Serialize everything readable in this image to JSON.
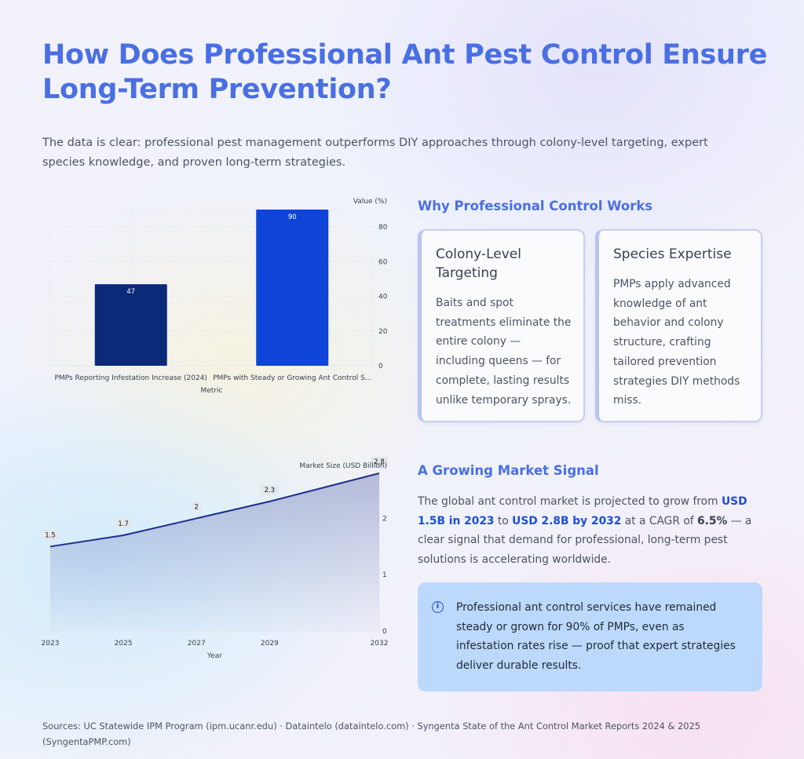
{
  "header": {
    "title": "How Does Professional Ant Pest Control Ensure Long-Term Prevention?",
    "subtitle": "The data is clear: professional pest management outperforms DIY approaches through colony-level targeting, expert species knowledge, and proven long-term strategies."
  },
  "chart_data": [
    {
      "type": "bar",
      "categories": [
        "PMPs Reporting Infestation Increase (2024)",
        "PMPs with Steady or Growing Ant Control S..."
      ],
      "values": [
        47,
        90
      ],
      "bar_colors": [
        "#0b2a7a",
        "#0f44d8"
      ],
      "xlabel": "Metric",
      "ylabel": "Value (%)",
      "ylim": [
        0,
        90
      ],
      "yticks": [
        0,
        20,
        40,
        60,
        80
      ],
      "grid": true,
      "y_axis_side": "right"
    },
    {
      "type": "area",
      "x": [
        "2023",
        "2025",
        "2027",
        "2029",
        "2032"
      ],
      "x_numeric": [
        2023,
        2025,
        2027,
        2029,
        2032
      ],
      "values": [
        1.5,
        1.7,
        2,
        2.3,
        2.8
      ],
      "line_color": "#1e2f8a",
      "xlabel": "Year",
      "ylabel": "Market Size (USD Billion)",
      "ylim": [
        0,
        2.8
      ],
      "yticks": [
        0,
        1,
        2
      ],
      "grid": true,
      "y_axis_side": "right"
    }
  ],
  "why": {
    "heading": "Why Professional Control Works",
    "cards": [
      {
        "title": "Colony-Level Targeting",
        "body": "Baits and spot treatments eliminate the entire colony — including queens — for complete, lasting results unlike temporary sprays."
      },
      {
        "title": "Species Expertise",
        "body": "PMPs apply advanced knowledge of ant behavior and colony structure, crafting tailored prevention strategies DIY methods miss."
      }
    ]
  },
  "market": {
    "heading": "A Growing Market Signal",
    "text_1": "The global ant control market is projected to grow from ",
    "bold_1": "USD 1.5B in 2023",
    "text_2": " to ",
    "bold_2": "USD 2.8B by 2032",
    "text_3": " at a CAGR of ",
    "bold_3": "6.5%",
    "text_4": " — a clear signal that demand for professional, long-term pest solutions is accelerating worldwide."
  },
  "info": {
    "icon": "info-icon",
    "icon_glyph": "i",
    "text": "Professional ant control services have remained steady or grown for 90% of PMPs, even as infestation rates rise — proof that expert strategies deliver durable results."
  },
  "footer": {
    "sources": "Sources: UC Statewide IPM Program (ipm.ucanr.edu) · Dataintelo (dataintelo.com) · Syngenta State of the Ant Control Market Reports 2024 & 2025 (SyngentaPMP.com)"
  }
}
